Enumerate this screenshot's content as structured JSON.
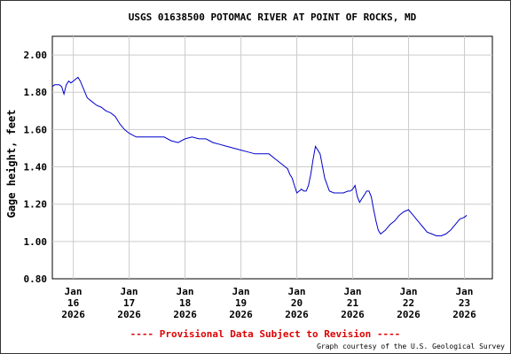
{
  "chart_data": {
    "type": "line",
    "title": "USGS 01638500 POTOMAC RIVER AT POINT OF ROCKS, MD",
    "ylabel": "Gage height, feet",
    "xlabel": "",
    "ylim": [
      0.8,
      2.1
    ],
    "yticks": [
      {
        "value": 0.8,
        "label": "0.80"
      },
      {
        "value": 1.0,
        "label": "1.00"
      },
      {
        "value": 1.2,
        "label": "1.20"
      },
      {
        "value": 1.4,
        "label": "1.40"
      },
      {
        "value": 1.6,
        "label": "1.60"
      },
      {
        "value": 1.8,
        "label": "1.80"
      },
      {
        "value": 2.0,
        "label": "2.00"
      }
    ],
    "xlim": [
      "2026-01-15T15:00",
      "2026-01-23T12:00"
    ],
    "xticks": [
      {
        "value": "2026-01-16T00:00",
        "month": "Jan",
        "day": "16",
        "year": "2026"
      },
      {
        "value": "2026-01-17T00:00",
        "month": "Jan",
        "day": "17",
        "year": "2026"
      },
      {
        "value": "2026-01-18T00:00",
        "month": "Jan",
        "day": "18",
        "year": "2026"
      },
      {
        "value": "2026-01-19T00:00",
        "month": "Jan",
        "day": "19",
        "year": "2026"
      },
      {
        "value": "2026-01-20T00:00",
        "month": "Jan",
        "day": "20",
        "year": "2026"
      },
      {
        "value": "2026-01-21T00:00",
        "month": "Jan",
        "day": "21",
        "year": "2026"
      },
      {
        "value": "2026-01-22T00:00",
        "month": "Jan",
        "day": "22",
        "year": "2026"
      },
      {
        "value": "2026-01-23T00:00",
        "month": "Jan",
        "day": "23",
        "year": "2026"
      }
    ],
    "grid": true,
    "line_color": "#0000cc",
    "series": [
      {
        "x": [
          "2026-01-15T15:00",
          "2026-01-15T16:00",
          "2026-01-15T17:00",
          "2026-01-15T18:00",
          "2026-01-15T19:00",
          "2026-01-15T20:00",
          "2026-01-15T21:00",
          "2026-01-15T22:00",
          "2026-01-15T23:00",
          "2026-01-16T00:00",
          "2026-01-16T01:00",
          "2026-01-16T02:00",
          "2026-01-16T03:00",
          "2026-01-16T04:00",
          "2026-01-16T06:00",
          "2026-01-16T08:00",
          "2026-01-16T10:00",
          "2026-01-16T12:00",
          "2026-01-16T14:00",
          "2026-01-16T16:00",
          "2026-01-16T18:00",
          "2026-01-16T20:00",
          "2026-01-16T22:00",
          "2026-01-17T00:00",
          "2026-01-17T03:00",
          "2026-01-17T06:00",
          "2026-01-17T09:00",
          "2026-01-17T12:00",
          "2026-01-17T15:00",
          "2026-01-17T18:00",
          "2026-01-17T21:00",
          "2026-01-18T00:00",
          "2026-01-18T03:00",
          "2026-01-18T06:00",
          "2026-01-18T09:00",
          "2026-01-18T12:00",
          "2026-01-18T15:00",
          "2026-01-18T18:00",
          "2026-01-18T21:00",
          "2026-01-19T00:00",
          "2026-01-19T03:00",
          "2026-01-19T06:00",
          "2026-01-19T09:00",
          "2026-01-19T12:00",
          "2026-01-19T15:00",
          "2026-01-19T18:00",
          "2026-01-19T19:00",
          "2026-01-19T20:00",
          "2026-01-19T21:00",
          "2026-01-19T22:00",
          "2026-01-19T23:00",
          "2026-01-20T00:00",
          "2026-01-20T01:00",
          "2026-01-20T02:00",
          "2026-01-20T03:00",
          "2026-01-20T04:00",
          "2026-01-20T05:00",
          "2026-01-20T06:00",
          "2026-01-20T07:00",
          "2026-01-20T08:00",
          "2026-01-20T10:00",
          "2026-01-20T12:00",
          "2026-01-20T14:00",
          "2026-01-20T16:00",
          "2026-01-20T18:00",
          "2026-01-20T20:00",
          "2026-01-20T22:00",
          "2026-01-20T23:00",
          "2026-01-21T00:00",
          "2026-01-21T01:00",
          "2026-01-21T02:00",
          "2026-01-21T03:00",
          "2026-01-21T04:00",
          "2026-01-21T05:00",
          "2026-01-21T06:00",
          "2026-01-21T07:00",
          "2026-01-21T08:00",
          "2026-01-21T09:00",
          "2026-01-21T10:00",
          "2026-01-21T11:00",
          "2026-01-21T12:00",
          "2026-01-21T14:00",
          "2026-01-21T16:00",
          "2026-01-21T18:00",
          "2026-01-21T20:00",
          "2026-01-21T22:00",
          "2026-01-22T00:00",
          "2026-01-22T02:00",
          "2026-01-22T04:00",
          "2026-01-22T06:00",
          "2026-01-22T08:00",
          "2026-01-22T10:00",
          "2026-01-22T12:00",
          "2026-01-22T14:00",
          "2026-01-22T16:00",
          "2026-01-22T18:00",
          "2026-01-22T20:00",
          "2026-01-22T22:00",
          "2026-01-23T00:00",
          "2026-01-23T01:00"
        ],
        "y": [
          1.83,
          1.84,
          1.84,
          1.84,
          1.83,
          1.79,
          1.84,
          1.86,
          1.85,
          1.86,
          1.87,
          1.88,
          1.86,
          1.83,
          1.77,
          1.75,
          1.73,
          1.72,
          1.7,
          1.69,
          1.67,
          1.63,
          1.6,
          1.58,
          1.56,
          1.56,
          1.56,
          1.56,
          1.56,
          1.54,
          1.53,
          1.55,
          1.56,
          1.55,
          1.55,
          1.53,
          1.52,
          1.51,
          1.5,
          1.49,
          1.48,
          1.47,
          1.47,
          1.47,
          1.44,
          1.41,
          1.4,
          1.39,
          1.36,
          1.34,
          1.3,
          1.26,
          1.27,
          1.28,
          1.27,
          1.27,
          1.3,
          1.36,
          1.44,
          1.51,
          1.47,
          1.34,
          1.27,
          1.26,
          1.26,
          1.26,
          1.27,
          1.27,
          1.28,
          1.3,
          1.24,
          1.21,
          1.23,
          1.25,
          1.27,
          1.27,
          1.24,
          1.17,
          1.11,
          1.06,
          1.04,
          1.06,
          1.09,
          1.11,
          1.14,
          1.16,
          1.17,
          1.14,
          1.11,
          1.08,
          1.05,
          1.04,
          1.03,
          1.03,
          1.04,
          1.06,
          1.09,
          1.12,
          1.13,
          1.14
        ]
      }
    ]
  },
  "footer": {
    "provisional": "---- Provisional Data Subject to Revision ----",
    "credit": "Graph courtesy of the U.S. Geological Survey"
  }
}
